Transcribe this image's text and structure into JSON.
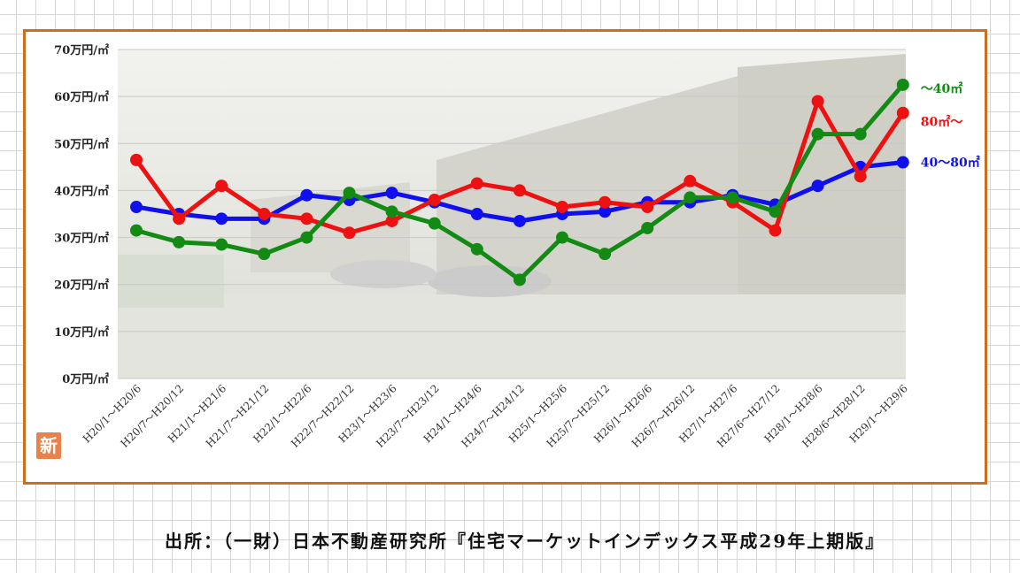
{
  "chart_data": {
    "type": "line",
    "title": "",
    "xlabel": "",
    "ylabel": "",
    "categories": [
      "H20/1～H20/6",
      "H20/7～H20/12",
      "H21/1～H21/6",
      "H21/7～H21/12",
      "H22/1～H22/6",
      "H22/7～H22/12",
      "H23/1～H23/6",
      "H23/7～H23/12",
      "H24/1～H24/6",
      "H24/7～H24/12",
      "H25/1～H25/6",
      "H25/7～H25/12",
      "H26/1～H26/6",
      "H26/7～H26/12",
      "H27/1～H27/6",
      "H27/6～H27/12",
      "H28/1～H28/6",
      "H28/6～H28/12",
      "H29/1～H29/6"
    ],
    "yticks": [
      "0万円/㎡",
      "10万円/㎡",
      "20万円/㎡",
      "30万円/㎡",
      "40万円/㎡",
      "50万円/㎡",
      "60万円/㎡",
      "70万円/㎡"
    ],
    "ylim": [
      0,
      70
    ],
    "grid": true,
    "series": [
      {
        "name": "40～80㎡",
        "color": "#1010ee",
        "values": [
          36.5,
          35,
          34,
          34,
          39,
          38,
          39.5,
          37.5,
          35,
          33.5,
          35,
          35.5,
          37.5,
          37.5,
          39,
          37,
          41,
          45,
          46
        ]
      },
      {
        "name": "80㎡～",
        "color": "#ee1111",
        "values": [
          46.5,
          34,
          41,
          35,
          34,
          31,
          33.5,
          38,
          41.5,
          40,
          36.5,
          37.5,
          36.5,
          42,
          37.5,
          31.5,
          59,
          43,
          56.5
        ]
      },
      {
        "name": "～40㎡",
        "color": "#138a13",
        "values": [
          31.5,
          29,
          28.5,
          26.5,
          30,
          39.5,
          35.5,
          33,
          27.5,
          21,
          30,
          26.5,
          32,
          38.5,
          38.5,
          35.5,
          52,
          52,
          62.5
        ]
      }
    ]
  },
  "badge_text": "新",
  "source_text": "出所：（一財）日本不動産研究所『住宅マーケットインデックス平成29年上期版』"
}
